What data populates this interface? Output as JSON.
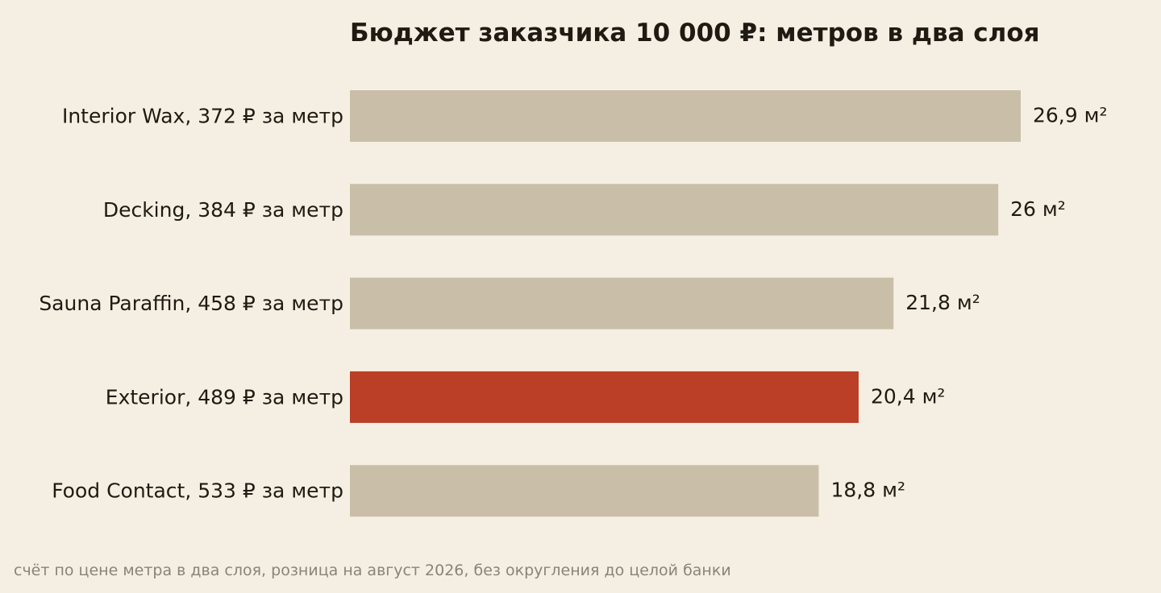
{
  "colors": {
    "background": "#f5efe3",
    "bar_default": "#c9bfa8",
    "bar_highlight": "#bb3e27",
    "text": "#1f1a12",
    "footnote": "#8a8478"
  },
  "chart_data": {
    "type": "bar",
    "orientation": "horizontal",
    "title": "Бюджет заказчика 10 000 ₽: метров в два слоя",
    "footnote": "счёт по цене метра в два слоя, розница на август 2026, без округления до целой банки",
    "xlabel": "",
    "ylabel": "",
    "xlim": [
      0,
      26.9
    ],
    "grid": false,
    "categories": [
      "Interior Wax, 372 ₽ за метр",
      "Decking, 384 ₽ за метр",
      "Sauna Paraffin, 458 ₽ за метр",
      "Exterior, 489 ₽ за метр",
      "Food Contact, 533 ₽ за метр"
    ],
    "values": [
      26.9,
      26.0,
      21.8,
      20.4,
      18.8
    ],
    "value_labels": [
      "26,9 м²",
      "26 м²",
      "21,8 м²",
      "20,4 м²",
      "18,8 м²"
    ],
    "highlight_index": 3
  }
}
